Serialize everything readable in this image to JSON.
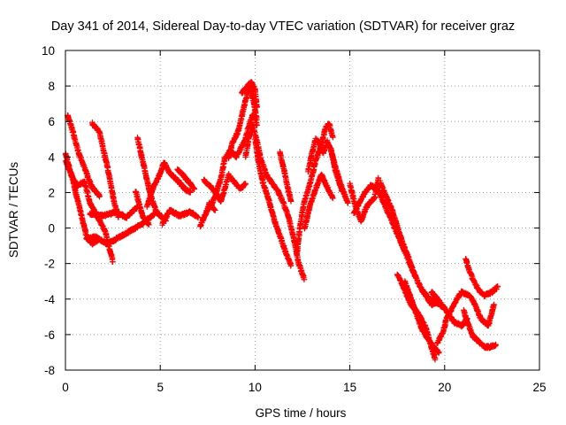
{
  "chart_data": {
    "type": "scatter",
    "title": "Day 341 of 2014, Sidereal Day-to-day VTEC variation (SDTVAR) for receiver graz",
    "xlabel": "GPS time / hours",
    "ylabel": "SDTVAR / TECUs",
    "xlim": [
      0,
      25
    ],
    "ylim": [
      -8,
      10
    ],
    "xticks": [
      0,
      5,
      10,
      15,
      20,
      25
    ],
    "yticks": [
      -8,
      -6,
      -4,
      -2,
      0,
      2,
      4,
      6,
      8,
      10
    ],
    "xtick_labels": [
      "0",
      "5",
      "10",
      "15",
      "20",
      "25"
    ],
    "ytick_labels": [
      "-8",
      "-6",
      "-4",
      "-2",
      "0",
      "2",
      "4",
      "6",
      "8",
      "10"
    ],
    "grid": true,
    "marker": "+",
    "color": "#ff0000",
    "tracks": [
      [
        [
          0.0,
          4.2
        ],
        [
          0.3,
          3.0
        ],
        [
          0.6,
          2.4
        ],
        [
          1.0,
          2.6
        ],
        [
          1.3,
          1.4
        ],
        [
          1.7,
          0.6
        ],
        [
          2.1,
          -0.2
        ],
        [
          2.5,
          -1.9
        ]
      ],
      [
        [
          0.1,
          6.4
        ],
        [
          0.4,
          5.4
        ],
        [
          0.7,
          4.2
        ],
        [
          1.0,
          3.4
        ],
        [
          1.4,
          2.3
        ],
        [
          1.8,
          1.8
        ]
      ],
      [
        [
          0.0,
          3.8
        ],
        [
          0.3,
          3.1
        ],
        [
          0.5,
          2.2
        ],
        [
          0.8,
          0.9
        ],
        [
          1.1,
          -0.4
        ],
        [
          1.4,
          -0.9
        ],
        [
          1.8,
          -0.6
        ]
      ],
      [
        [
          1.4,
          5.9
        ],
        [
          1.8,
          5.4
        ],
        [
          2.0,
          4.4
        ],
        [
          2.2,
          3.5
        ],
        [
          2.4,
          2.4
        ],
        [
          2.6,
          1.3
        ],
        [
          2.8,
          0.6
        ]
      ],
      [
        [
          1.1,
          -0.6
        ],
        [
          1.6,
          -0.5
        ],
        [
          2.2,
          -0.9
        ],
        [
          3.2,
          -0.3
        ],
        [
          4.0,
          0.2
        ],
        [
          4.7,
          0.8
        ]
      ],
      [
        [
          1.3,
          0.8
        ],
        [
          2.0,
          0.7
        ],
        [
          2.7,
          0.9
        ],
        [
          3.2,
          0.6
        ],
        [
          3.8,
          1.2
        ]
      ],
      [
        [
          3.8,
          5.1
        ],
        [
          4.0,
          4.1
        ],
        [
          4.2,
          3.2
        ],
        [
          4.4,
          2.2
        ],
        [
          4.6,
          1.5
        ],
        [
          4.8,
          0.9
        ],
        [
          5.0,
          0.7
        ],
        [
          5.3,
          0.4
        ]
      ],
      [
        [
          4.3,
          1.2
        ],
        [
          4.6,
          2.2
        ],
        [
          5.0,
          3.1
        ],
        [
          5.2,
          3.7
        ],
        [
          5.5,
          3.1
        ],
        [
          5.9,
          2.7
        ],
        [
          6.3,
          2.2
        ],
        [
          6.6,
          2.0
        ]
      ],
      [
        [
          3.7,
          2.1
        ],
        [
          3.9,
          1.3
        ],
        [
          4.1,
          0.6
        ],
        [
          4.4,
          0.2
        ]
      ],
      [
        [
          5.1,
          0.2
        ],
        [
          5.5,
          1.0
        ],
        [
          6.0,
          0.7
        ],
        [
          6.6,
          0.9
        ],
        [
          7.0,
          0.6
        ]
      ],
      [
        [
          5.9,
          3.3
        ],
        [
          6.2,
          3.0
        ],
        [
          6.5,
          2.6
        ],
        [
          6.8,
          2.2
        ]
      ],
      [
        [
          7.1,
          0.1
        ],
        [
          7.4,
          0.8
        ],
        [
          7.6,
          1.4
        ],
        [
          7.9,
          1.0
        ]
      ],
      [
        [
          7.3,
          2.7
        ],
        [
          7.6,
          2.4
        ],
        [
          7.9,
          2.0
        ],
        [
          8.2,
          1.5
        ],
        [
          8.4,
          2.2
        ],
        [
          8.6,
          3.0
        ],
        [
          8.9,
          2.6
        ],
        [
          9.2,
          2.2
        ],
        [
          9.5,
          2.5
        ]
      ],
      [
        [
          7.6,
          1.1
        ],
        [
          7.9,
          1.8
        ],
        [
          8.2,
          2.8
        ],
        [
          8.4,
          3.9
        ],
        [
          8.7,
          4.4
        ],
        [
          9.0,
          4.0
        ],
        [
          9.2,
          4.4
        ],
        [
          9.5,
          5.0
        ],
        [
          9.7,
          5.9
        ],
        [
          9.9,
          6.4
        ],
        [
          10.1,
          5.8
        ]
      ],
      [
        [
          8.6,
          3.9
        ],
        [
          8.8,
          4.8
        ],
        [
          9.1,
          5.4
        ],
        [
          9.3,
          6.3
        ],
        [
          9.5,
          7.2
        ],
        [
          9.7,
          8.0
        ],
        [
          9.9,
          7.2
        ],
        [
          10.1,
          6.1
        ]
      ],
      [
        [
          9.3,
          7.6
        ],
        [
          9.6,
          8.0
        ],
        [
          9.8,
          8.2
        ],
        [
          10.0,
          7.8
        ],
        [
          10.1,
          6.8
        ]
      ],
      [
        [
          9.5,
          4.0
        ],
        [
          9.7,
          5.2
        ],
        [
          9.9,
          5.8
        ],
        [
          10.1,
          4.9
        ],
        [
          10.3,
          3.9
        ],
        [
          10.6,
          3.0
        ],
        [
          10.9,
          2.5
        ],
        [
          11.2,
          2.1
        ],
        [
          11.5,
          1.4
        ],
        [
          11.8,
          0.5
        ],
        [
          12.1,
          -0.9
        ],
        [
          12.3,
          -2.0
        ],
        [
          12.6,
          -2.9
        ]
      ],
      [
        [
          10.0,
          5.0
        ],
        [
          10.2,
          3.6
        ],
        [
          10.4,
          2.6
        ],
        [
          10.6,
          2.0
        ],
        [
          10.8,
          1.3
        ],
        [
          11.0,
          0.5
        ],
        [
          11.3,
          -0.4
        ],
        [
          11.6,
          -1.3
        ],
        [
          11.9,
          -2.1
        ]
      ],
      [
        [
          11.3,
          4.3
        ],
        [
          11.5,
          3.4
        ],
        [
          11.7,
          2.4
        ],
        [
          11.9,
          1.5
        ]
      ],
      [
        [
          12.2,
          -1.5
        ],
        [
          12.4,
          0.3
        ],
        [
          12.6,
          1.5
        ],
        [
          12.9,
          2.5
        ],
        [
          13.2,
          3.8
        ],
        [
          13.5,
          4.7
        ],
        [
          13.7,
          5.6
        ],
        [
          13.9,
          5.9
        ],
        [
          14.1,
          5.1
        ]
      ],
      [
        [
          12.6,
          -0.1
        ],
        [
          12.9,
          1.3
        ],
        [
          13.2,
          2.2
        ],
        [
          13.5,
          3.0
        ],
        [
          13.8,
          2.3
        ],
        [
          14.1,
          1.7
        ]
      ],
      [
        [
          12.8,
          3.2
        ],
        [
          13.0,
          4.2
        ],
        [
          13.2,
          5.0
        ],
        [
          13.4,
          4.8
        ],
        [
          13.6,
          4.2
        ],
        [
          13.8,
          4.9
        ],
        [
          14.0,
          4.4
        ],
        [
          14.3,
          3.2
        ],
        [
          14.6,
          2.2
        ],
        [
          14.9,
          1.4
        ]
      ],
      [
        [
          14.0,
          4.5
        ],
        [
          14.2,
          3.4
        ],
        [
          14.4,
          2.7
        ],
        [
          14.6,
          2.1
        ]
      ],
      [
        [
          15.0,
          2.5
        ],
        [
          15.2,
          1.6
        ],
        [
          15.4,
          0.9
        ],
        [
          15.6,
          0.4
        ],
        [
          15.8,
          1.0
        ],
        [
          16.0,
          1.4
        ],
        [
          16.3,
          1.7
        ],
        [
          16.5,
          2.8
        ]
      ],
      [
        [
          15.2,
          0.8
        ],
        [
          15.5,
          1.4
        ],
        [
          15.8,
          2.0
        ],
        [
          16.1,
          2.4
        ],
        [
          16.4,
          2.2
        ],
        [
          16.7,
          1.8
        ]
      ],
      [
        [
          16.4,
          2.4
        ],
        [
          16.7,
          1.6
        ],
        [
          17.0,
          0.9
        ],
        [
          17.3,
          0.2
        ],
        [
          17.6,
          -0.6
        ],
        [
          17.9,
          -1.3
        ],
        [
          18.2,
          -2.1
        ],
        [
          18.5,
          -2.8
        ]
      ],
      [
        [
          16.6,
          2.6
        ],
        [
          16.9,
          1.8
        ],
        [
          17.2,
          1.1
        ],
        [
          17.5,
          0.1
        ],
        [
          17.8,
          -0.9
        ],
        [
          18.1,
          -1.7
        ],
        [
          18.4,
          -2.6
        ],
        [
          18.7,
          -3.3
        ],
        [
          19.0,
          -3.8
        ],
        [
          19.3,
          -4.3
        ],
        [
          19.6,
          -4.2
        ]
      ],
      [
        [
          17.5,
          -2.6
        ],
        [
          17.9,
          -3.5
        ],
        [
          18.2,
          -4.3
        ],
        [
          18.6,
          -4.8
        ],
        [
          19.0,
          -5.6
        ],
        [
          19.3,
          -6.7
        ],
        [
          19.5,
          -7.4
        ]
      ],
      [
        [
          17.9,
          -3.0
        ],
        [
          18.2,
          -3.9
        ],
        [
          18.5,
          -4.8
        ],
        [
          18.8,
          -5.7
        ],
        [
          19.1,
          -6.2
        ],
        [
          19.4,
          -6.7
        ],
        [
          19.7,
          -7.0
        ]
      ],
      [
        [
          18.8,
          -3.5
        ],
        [
          19.2,
          -4.0
        ],
        [
          19.6,
          -4.2
        ],
        [
          20.0,
          -4.5
        ]
      ],
      [
        [
          19.3,
          -3.6
        ],
        [
          19.7,
          -4.1
        ],
        [
          20.1,
          -4.7
        ],
        [
          20.5,
          -5.3
        ],
        [
          20.9,
          -5.5
        ],
        [
          21.2,
          -5.1
        ]
      ],
      [
        [
          19.6,
          -6.5
        ],
        [
          19.9,
          -5.9
        ],
        [
          20.1,
          -5.1
        ],
        [
          20.4,
          -4.5
        ],
        [
          20.7,
          -3.9
        ],
        [
          20.9,
          -3.6
        ],
        [
          21.3,
          -3.8
        ],
        [
          21.6,
          -4.3
        ],
        [
          21.9,
          -5.1
        ],
        [
          22.3,
          -5.5
        ],
        [
          22.6,
          -4.3
        ]
      ],
      [
        [
          21.0,
          -4.6
        ],
        [
          21.2,
          -5.3
        ],
        [
          21.5,
          -6.1
        ],
        [
          21.8,
          -6.4
        ],
        [
          22.1,
          -6.7
        ],
        [
          22.4,
          -6.7
        ],
        [
          22.7,
          -6.6
        ]
      ],
      [
        [
          21.1,
          -1.7
        ],
        [
          21.3,
          -2.4
        ],
        [
          21.5,
          -2.9
        ],
        [
          21.8,
          -3.5
        ],
        [
          22.1,
          -3.8
        ],
        [
          22.5,
          -3.6
        ],
        [
          22.8,
          -3.3
        ]
      ]
    ]
  }
}
